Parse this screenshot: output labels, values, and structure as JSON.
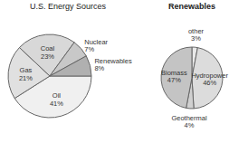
{
  "chart_data": [
    {
      "type": "pie",
      "title": "U.S. Energy Sources",
      "categories": [
        "Oil",
        "Gas",
        "Coal",
        "Nuclear",
        "Renewables"
      ],
      "values": [
        41,
        21,
        23,
        7,
        8
      ],
      "value_labels": [
        "41%",
        "21%",
        "23%",
        "7%",
        "8%"
      ],
      "colors": [
        "#f0f0f0",
        "#e0e0e0",
        "#d8d8d8",
        "#c8c8c8",
        "#b0b0b0"
      ],
      "data_labels": true
    },
    {
      "type": "pie",
      "title": "Renewables",
      "categories": [
        "other",
        "Hydropower",
        "Geothermal",
        "Biomass"
      ],
      "values": [
        3,
        46,
        4,
        47
      ],
      "value_labels": [
        "3%",
        "46%",
        "4%",
        "47%"
      ],
      "colors": [
        "#e8e8e8",
        "#dcdcdc",
        "#d0d0d0",
        "#c4c4c4"
      ],
      "data_labels": true
    }
  ]
}
